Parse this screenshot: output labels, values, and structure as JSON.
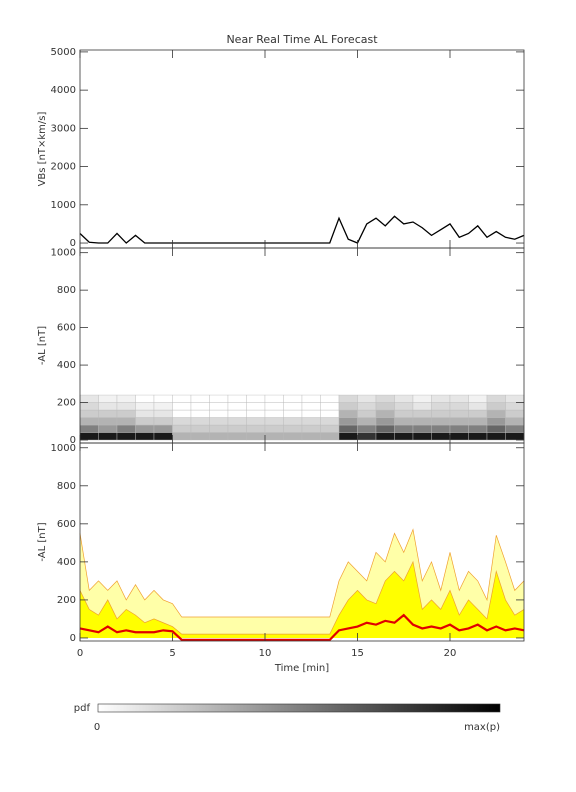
{
  "chart_data": [
    {
      "type": "line",
      "title": "Near Real Time AL Forecast",
      "ylabel": "VBs [nT×km/s]",
      "x": [
        0,
        0.5,
        1,
        1.5,
        2,
        2.5,
        3,
        3.5,
        4,
        4.5,
        5,
        5.5,
        6,
        6.5,
        7,
        7.5,
        8,
        8.5,
        9,
        9.5,
        10,
        10.5,
        11,
        11.5,
        12,
        12.5,
        13,
        13.5,
        14,
        14.5,
        15,
        15.5,
        16,
        16.5,
        17,
        17.5,
        18,
        18.5,
        19,
        19.5,
        20,
        20.5,
        21,
        21.5,
        22,
        22.5,
        23,
        23.5,
        24
      ],
      "series": [
        {
          "color": "#000000",
          "values": [
            250,
            20,
            0,
            0,
            250,
            0,
            200,
            0,
            0,
            0,
            0,
            0,
            0,
            0,
            0,
            0,
            0,
            0,
            0,
            0,
            0,
            0,
            0,
            0,
            0,
            0,
            0,
            0,
            650,
            100,
            0,
            500,
            650,
            450,
            700,
            500,
            550,
            400,
            200,
            350,
            500,
            150,
            250,
            450,
            150,
            300,
            150,
            100,
            200
          ]
        }
      ],
      "xlim": [
        0,
        24
      ],
      "xticks": [
        0,
        5,
        10,
        15,
        20
      ],
      "ylim": [
        -130,
        5050
      ],
      "yticks": [
        0,
        1000,
        2000,
        3000,
        4000,
        5000
      ]
    },
    {
      "type": "heatmap",
      "ylabel": "-AL [nT]",
      "xbins": [
        0,
        1,
        2,
        3,
        4,
        5,
        6,
        7,
        8,
        9,
        10,
        11,
        12,
        13,
        14,
        15,
        16,
        17,
        18,
        19,
        20,
        21,
        22,
        23,
        24
      ],
      "ybins": [
        0,
        40,
        80,
        120,
        160,
        200,
        240
      ],
      "z": [
        [
          0.9,
          0.9,
          0.9,
          0.9,
          0.9,
          0.3,
          0.3,
          0.3,
          0.3,
          0.3,
          0.3,
          0.3,
          0.3,
          0.3,
          0.9,
          0.8,
          0.9,
          0.9,
          0.9,
          0.9,
          0.9,
          0.9,
          0.9,
          0.9
        ],
        [
          0.5,
          0.4,
          0.5,
          0.4,
          0.4,
          0.2,
          0.2,
          0.2,
          0.2,
          0.2,
          0.2,
          0.2,
          0.2,
          0.2,
          0.6,
          0.5,
          0.6,
          0.5,
          0.5,
          0.5,
          0.5,
          0.5,
          0.6,
          0.5
        ],
        [
          0.3,
          0.3,
          0.3,
          0.2,
          0.2,
          0.15,
          0.15,
          0.15,
          0.15,
          0.15,
          0.15,
          0.15,
          0.15,
          0.15,
          0.4,
          0.3,
          0.4,
          0.3,
          0.3,
          0.3,
          0.3,
          0.3,
          0.4,
          0.3
        ],
        [
          0.2,
          0.2,
          0.2,
          0.1,
          0.1,
          0,
          0,
          0,
          0,
          0,
          0,
          0,
          0,
          0,
          0.3,
          0.2,
          0.3,
          0.2,
          0.2,
          0.2,
          0.2,
          0.2,
          0.3,
          0.2
        ],
        [
          0.15,
          0.1,
          0.1,
          0.05,
          0.05,
          0,
          0,
          0,
          0,
          0,
          0,
          0,
          0,
          0,
          0.2,
          0.15,
          0.2,
          0.15,
          0.1,
          0.15,
          0.15,
          0.1,
          0.2,
          0.15
        ],
        [
          0.1,
          0.05,
          0.05,
          0,
          0,
          0,
          0,
          0,
          0,
          0,
          0,
          0,
          0,
          0,
          0.15,
          0.1,
          0.15,
          0.1,
          0.05,
          0.1,
          0.1,
          0.05,
          0.15,
          0.1
        ]
      ],
      "xlim": [
        0,
        24
      ],
      "xticks": [
        0,
        5,
        10,
        15,
        20
      ],
      "ylim": [
        -16,
        1025
      ],
      "yticks": [
        0,
        200,
        400,
        600,
        800,
        1000
      ],
      "colorbar": {
        "label": "pdf",
        "min_label": "0",
        "max_label": "max(p)"
      }
    },
    {
      "type": "area",
      "ylabel": "-AL [nT]",
      "xlabel": "Time [min]",
      "x": [
        0,
        0.5,
        1,
        1.5,
        2,
        2.5,
        3,
        3.5,
        4,
        4.5,
        5,
        5.5,
        6,
        6.5,
        7,
        7.5,
        8,
        8.5,
        9,
        9.5,
        10,
        10.5,
        11,
        11.5,
        12,
        12.5,
        13,
        13.5,
        14,
        14.5,
        15,
        15.5,
        16,
        16.5,
        17,
        17.5,
        18,
        18.5,
        19,
        19.5,
        20,
        20.5,
        21,
        21.5,
        22,
        22.5,
        23,
        23.5,
        24
      ],
      "series": [
        {
          "color": "#f0a030",
          "fill": "#ffffa8",
          "values": [
            550,
            250,
            300,
            250,
            300,
            200,
            280,
            200,
            250,
            200,
            180,
            110,
            110,
            110,
            110,
            110,
            110,
            110,
            110,
            110,
            110,
            110,
            110,
            110,
            110,
            110,
            110,
            110,
            300,
            400,
            350,
            300,
            450,
            400,
            550,
            450,
            570,
            300,
            400,
            250,
            450,
            250,
            350,
            300,
            200,
            540,
            400,
            250,
            300
          ]
        },
        {
          "color": "#f0a030",
          "fill": "#ffff00",
          "values": [
            250,
            150,
            120,
            200,
            100,
            150,
            120,
            80,
            100,
            80,
            60,
            20,
            20,
            20,
            20,
            20,
            20,
            20,
            20,
            20,
            20,
            20,
            20,
            20,
            20,
            20,
            20,
            20,
            120,
            200,
            250,
            200,
            180,
            300,
            350,
            300,
            400,
            150,
            200,
            150,
            250,
            120,
            200,
            150,
            100,
            350,
            200,
            120,
            150
          ]
        },
        {
          "color": "#e00000",
          "values": [
            50,
            40,
            30,
            60,
            30,
            40,
            30,
            30,
            30,
            40,
            35,
            -10,
            -10,
            -10,
            -10,
            -10,
            -10,
            -10,
            -10,
            -10,
            -10,
            -10,
            -10,
            -10,
            -10,
            -10,
            -10,
            -10,
            40,
            50,
            60,
            80,
            70,
            90,
            80,
            120,
            70,
            50,
            60,
            50,
            70,
            40,
            50,
            70,
            40,
            60,
            40,
            50,
            40
          ]
        }
      ],
      "xlim": [
        0,
        24
      ],
      "xticks": [
        0,
        5,
        10,
        15,
        20
      ],
      "ylim": [
        -16,
        1025
      ],
      "yticks": [
        0,
        200,
        400,
        600,
        800,
        1000
      ]
    }
  ]
}
